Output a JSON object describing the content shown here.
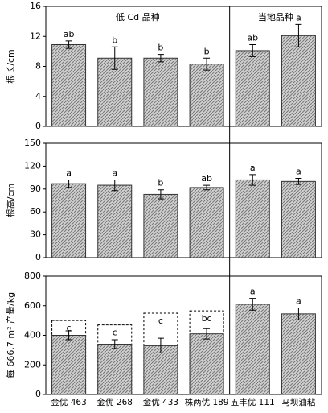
{
  "chart_data": [
    {
      "type": "bar",
      "annotations": [
        "低 Cd 品种",
        "当地品种"
      ],
      "ylabel": "根长/cm",
      "ylim": [
        0,
        16
      ],
      "yticks": [
        0,
        4,
        8,
        12,
        16
      ],
      "color": "#b8b8b8",
      "values": [
        10.9,
        9.1,
        9.1,
        8.3,
        10.1,
        12.1
      ],
      "errors": [
        0.5,
        1.5,
        0.5,
        0.8,
        0.8,
        1.5
      ],
      "letters": [
        "ab",
        "b",
        "b",
        "b",
        "ab",
        "a"
      ]
    },
    {
      "type": "bar",
      "ylabel": "根高/cm",
      "ylim": [
        0,
        150
      ],
      "yticks": [
        0,
        30,
        60,
        90,
        120,
        150
      ],
      "color": "#b8b8b8",
      "values": [
        97,
        95,
        83,
        92,
        102,
        100
      ],
      "errors": [
        5,
        7,
        6,
        3,
        7,
        4
      ],
      "letters": [
        "a",
        "a",
        "b",
        "ab",
        "a",
        "a"
      ]
    },
    {
      "type": "bar",
      "ylabel": "每 666.7 m² 产量/kg",
      "ylim": [
        0,
        800
      ],
      "yticks": [
        0,
        200,
        400,
        600,
        800
      ],
      "color": "#b8b8b8",
      "categories": [
        "金优 463",
        "金优 268",
        "金优 433",
        "株两优 189",
        "五丰优 111",
        "马坝油粘"
      ],
      "values": [
        400,
        340,
        330,
        410,
        610,
        545
      ],
      "errors": [
        30,
        30,
        50,
        35,
        40,
        40
      ],
      "upper_values": [
        500,
        470,
        550,
        565,
        null,
        null
      ],
      "letters": [
        "c",
        "c",
        "c",
        "bc",
        "a",
        "a"
      ]
    }
  ]
}
